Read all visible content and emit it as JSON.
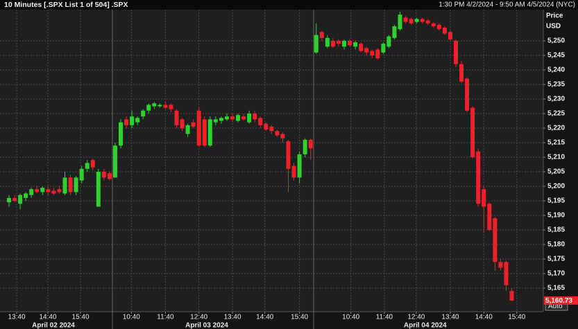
{
  "chart_data": {
    "type": "candlestick",
    "title": "10 Minutes [.SPX List 1 of 504] .SPX",
    "range": "1:30 PM 4/2/2024 - 9:50 AM 4/5/2024 (NYC)",
    "y_label": [
      "Price",
      "USD"
    ],
    "auto_button": "Auto",
    "up_color": "#2fd12f",
    "down_color": "#f0202a",
    "candles": [
      [
        5194.5,
        5197,
        5193,
        5196
      ],
      [
        5196,
        5197,
        5194.5,
        5195
      ],
      [
        5194,
        5197.5,
        5192,
        5197
      ],
      [
        5196,
        5198,
        5195,
        5197.5
      ],
      [
        5197,
        5199.5,
        5196,
        5199
      ],
      [
        5199,
        5200,
        5197.5,
        5198
      ],
      [
        5198,
        5200,
        5197,
        5199.5
      ],
      [
        5199,
        5200,
        5197,
        5198
      ],
      [
        5198.5,
        5199.5,
        5197,
        5197.5
      ],
      [
        5199,
        5200,
        5197.5,
        5198
      ],
      [
        5197.5,
        5205,
        5197,
        5203
      ],
      [
        5203,
        5204,
        5197,
        5198
      ],
      [
        5198,
        5203.5,
        5197,
        5203
      ],
      [
        5202,
        5207,
        5201,
        5206
      ],
      [
        5206,
        5209,
        5205,
        5208
      ],
      [
        5209,
        5209.5,
        5205.5,
        5206.5
      ],
      [
        5193,
        5206,
        5193,
        5205
      ],
      [
        5205,
        5206,
        5202,
        5203
      ],
      [
        5204.5,
        5205,
        5202,
        5202.5
      ],
      [
        5203,
        5215,
        5203,
        5214
      ],
      [
        5214,
        5223,
        5213,
        5222
      ],
      [
        5223,
        5224,
        5220,
        5221
      ],
      [
        5221,
        5226,
        5220,
        5224
      ],
      [
        5222,
        5224,
        5221,
        5223.5
      ],
      [
        5224,
        5226.5,
        5223,
        5226
      ],
      [
        5226,
        5228.5,
        5225,
        5228
      ],
      [
        5227.5,
        5229,
        5226.5,
        5228.5
      ],
      [
        5227.5,
        5228.5,
        5227,
        5228
      ],
      [
        5228,
        5229,
        5226.5,
        5227
      ],
      [
        5228,
        5228.5,
        5225.5,
        5226.5
      ],
      [
        5226,
        5226.5,
        5220,
        5221
      ],
      [
        5223,
        5223.5,
        5219,
        5220
      ],
      [
        5218,
        5221.5,
        5217,
        5221
      ],
      [
        5222,
        5223,
        5220,
        5220.5
      ],
      [
        5226,
        5227,
        5213.5,
        5214
      ],
      [
        5223,
        5224,
        5213.5,
        5214
      ],
      [
        5214,
        5224,
        5213.5,
        5223
      ],
      [
        5222,
        5224,
        5221,
        5223
      ],
      [
        5222.5,
        5224,
        5221.5,
        5223.5
      ],
      [
        5223,
        5225,
        5222.5,
        5224
      ],
      [
        5224,
        5225,
        5222,
        5223
      ],
      [
        5222.5,
        5225,
        5222,
        5224.5
      ],
      [
        5224,
        5225,
        5222.5,
        5223
      ],
      [
        5222,
        5226,
        5221.5,
        5225
      ],
      [
        5225,
        5226,
        5222,
        5223
      ],
      [
        5223.5,
        5224,
        5220,
        5221
      ],
      [
        5221.5,
        5222,
        5219,
        5219.5
      ],
      [
        5220.5,
        5221,
        5218,
        5219
      ],
      [
        5219,
        5219.5,
        5217,
        5217.5
      ],
      [
        5218,
        5218.5,
        5215,
        5216.5
      ],
      [
        5215.5,
        5216,
        5198,
        5206
      ],
      [
        5207,
        5208,
        5202,
        5203
      ],
      [
        5203,
        5212,
        5201,
        5211
      ],
      [
        5211,
        5216.5,
        5210,
        5216
      ],
      [
        5216,
        5216.5,
        5209,
        5213
      ],
      [
        5246,
        5256,
        5245.5,
        5252
      ],
      [
        5253,
        5253.5,
        5250,
        5251
      ],
      [
        5248,
        5252,
        5247.5,
        5251
      ],
      [
        5250,
        5251,
        5247.5,
        5248
      ],
      [
        5250,
        5250.5,
        5248,
        5249
      ],
      [
        5248,
        5250.5,
        5247,
        5250
      ],
      [
        5250,
        5250.5,
        5248,
        5248.5
      ],
      [
        5248,
        5250,
        5247,
        5249.5
      ],
      [
        5249,
        5249.5,
        5246,
        5246.5
      ],
      [
        5247.5,
        5248,
        5245,
        5246
      ],
      [
        5246.5,
        5247,
        5244,
        5245
      ],
      [
        5247,
        5247.5,
        5243.5,
        5244
      ],
      [
        5246,
        5249.5,
        5245.5,
        5249
      ],
      [
        5248,
        5252,
        5247.5,
        5251.5
      ],
      [
        5251,
        5255.5,
        5250.5,
        5255
      ],
      [
        5254,
        5260,
        5253.5,
        5259
      ],
      [
        5258,
        5258.5,
        5256,
        5256.5
      ],
      [
        5257.5,
        5258,
        5255.5,
        5256
      ],
      [
        5256.5,
        5258,
        5256,
        5257.5
      ],
      [
        5257.5,
        5258,
        5256,
        5256.5
      ],
      [
        5257,
        5257.5,
        5255.5,
        5256
      ],
      [
        5256,
        5256.5,
        5254.5,
        5255
      ],
      [
        5255.5,
        5256,
        5253.5,
        5254
      ],
      [
        5254.5,
        5255,
        5252,
        5252.5
      ],
      [
        5253,
        5253.5,
        5250,
        5250.5
      ],
      [
        5250,
        5250.5,
        5241,
        5242
      ],
      [
        5242,
        5243,
        5235.5,
        5236
      ],
      [
        5237,
        5237.5,
        5225.5,
        5226
      ],
      [
        5227,
        5227.5,
        5209.5,
        5210
      ],
      [
        5212,
        5213,
        5193,
        5194
      ],
      [
        5199,
        5200,
        5184,
        5193
      ],
      [
        5194,
        5194.5,
        5184.5,
        5185
      ],
      [
        5189,
        5189.5,
        5171,
        5174
      ],
      [
        5174,
        5175,
        5171,
        5172
      ],
      [
        5174,
        5174.5,
        5164,
        5166
      ],
      [
        5164,
        5165,
        5160.5,
        5160.73
      ]
    ],
    "last_value_label": "5,160.73",
    "ylim": [
      5156.9,
      5260.7
    ],
    "yticks": [
      {
        "value": 5165,
        "label": "5,165"
      },
      {
        "value": 5170,
        "label": "5,170"
      },
      {
        "value": 5175,
        "label": "5,175"
      },
      {
        "value": 5180,
        "label": "5,180"
      },
      {
        "value": 5185,
        "label": "5,185"
      },
      {
        "value": 5190,
        "label": "5,190"
      },
      {
        "value": 5195,
        "label": "5,195"
      },
      {
        "value": 5200,
        "label": "5,200"
      },
      {
        "value": 5205,
        "label": "5,205"
      },
      {
        "value": 5210,
        "label": "5,210"
      },
      {
        "value": 5215,
        "label": "5,215"
      },
      {
        "value": 5220,
        "label": "5,220"
      },
      {
        "value": 5225,
        "label": "5,225"
      },
      {
        "value": 5230,
        "label": "5,230"
      },
      {
        "value": 5235,
        "label": "5,235"
      },
      {
        "value": 5240,
        "label": "5,240"
      },
      {
        "value": 5245,
        "label": "5,245"
      },
      {
        "value": 5250,
        "label": "5,250"
      }
    ],
    "xticks": [
      {
        "value": 1.37,
        "label": "13:40"
      },
      {
        "value": 6.96,
        "label": "14:40"
      },
      {
        "value": 12.8,
        "label": "15:40"
      },
      {
        "value": 21.9,
        "label": "10:40"
      },
      {
        "value": 28,
        "label": "11:40"
      },
      {
        "value": 34,
        "label": "12:40"
      },
      {
        "value": 40,
        "label": "13:40"
      },
      {
        "value": 45.8,
        "label": "14:40"
      },
      {
        "value": 52,
        "label": "15:40"
      },
      {
        "value": 61.2,
        "label": "10:40"
      },
      {
        "value": 67.2,
        "label": "11:40"
      },
      {
        "value": 72.9,
        "label": "12:40"
      },
      {
        "value": 79,
        "label": "13:40"
      },
      {
        "value": 85,
        "label": "14:40"
      },
      {
        "value": 90.9,
        "label": "15:40"
      }
    ],
    "date_labels": [
      {
        "value": 7.95,
        "label": "April 02 2024"
      },
      {
        "value": 35.4,
        "label": "April 03 2024"
      },
      {
        "value": 74.5,
        "label": "April 04 2024"
      }
    ],
    "grid": true
  }
}
